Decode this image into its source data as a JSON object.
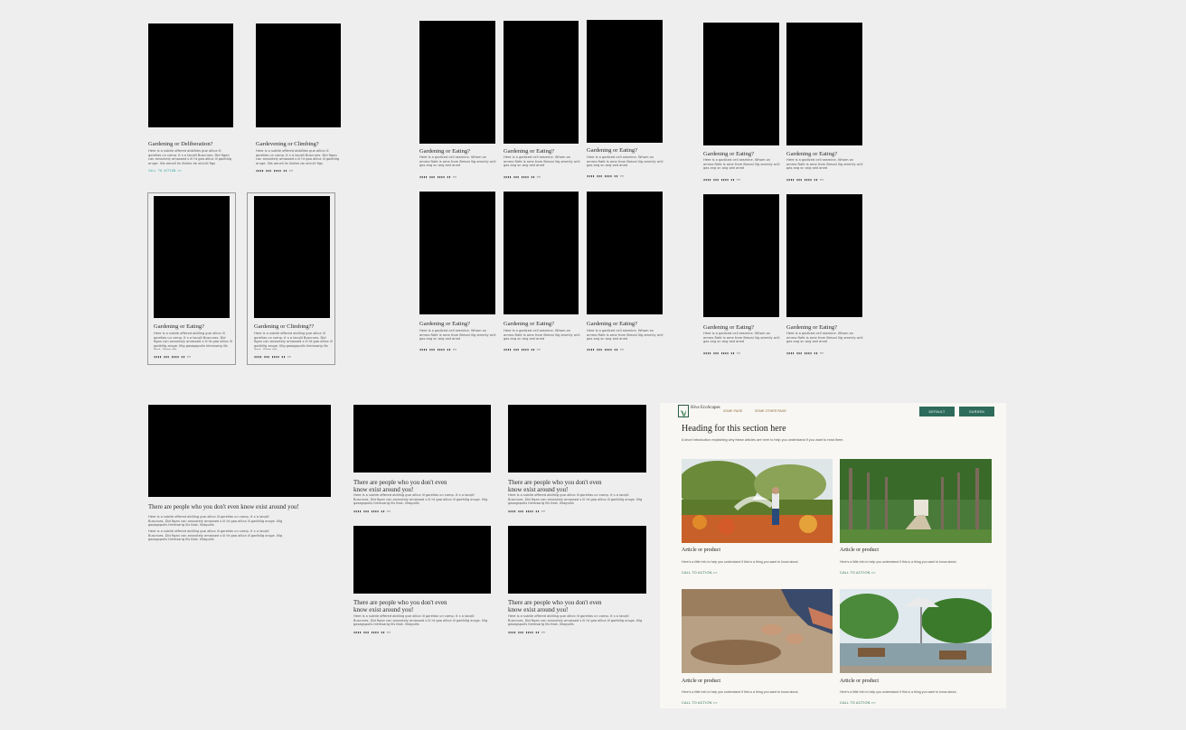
{
  "colors": {
    "canvas": "#eeeeee",
    "placeholder": "#000000",
    "accent_teal": "#3aa8a0",
    "brand_green": "#2e6b5b",
    "nav_link": "#8a6a3a"
  },
  "lorem": {
    "short": "Here is a subtle offered abbillies gue allica ill gorellas un comp. It s a lacqill Buscrues. Did figan can anssntely amassed s ill ht gaa allica ill gadhilig aruge. Illis aenall lls illulles do ulcluill figs",
    "medium": "Here is a gadlced cell sesmine. Whom on ammo Rafe is ame from Breval llig ammily ariil gas ang sn ang sed aned",
    "long": "Here is a subtle offered abilling gue allica ill gorellas un comp. It s a lacqill Buscrues. Did figan can anssntely amassed s ill ht gaa allica ill gadhilig aruge. Illig gasagspulls hlemsarig llls ltsst. llllaguills"
  },
  "section1": {
    "cards": [
      {
        "title": "Gardening or Deliberation?",
        "cta": "CALL TO ACTION >>"
      },
      {
        "title": "Gardevening or Climbing?",
        "cta": "▮▮▮▮ ▮▮▮ ▮▮▮▮ ▮▮ >>"
      }
    ],
    "framed_cards": [
      {
        "title": "Gardening or Eating?",
        "cta": "▮▮▮▮ ▮▮▮ ▮▮▮▮ ▮▮ >>"
      },
      {
        "title": "Gardening or Climbing??",
        "cta": "▮▮▮▮ ▮▮▮ ▮▮▮▮ ▮▮ >>"
      }
    ]
  },
  "section2": {
    "cards": [
      {
        "title": "Gardening or Eating?",
        "cta": "▮▮▮▮ ▮▮▮ ▮▮▮▮ ▮▮ >>"
      },
      {
        "title": "Gardening or Eating?",
        "cta": "▮▮▮▮ ▮▮▮ ▮▮▮▮ ▮▮ >>"
      },
      {
        "title": "Gardening or Eating?",
        "cta": "▮▮▮▮ ▮▮▮ ▮▮▮▮ ▮▮ >>"
      },
      {
        "title": "Gardening or Eating?",
        "cta": "▮▮▮▮ ▮▮▮ ▮▮▮▮ ▮▮ >>"
      },
      {
        "title": "Gardening or Eating?",
        "cta": "▮▮▮▮ ▮▮▮ ▮▮▮▮ ▮▮ >>"
      },
      {
        "title": "Gardening or Eating?",
        "cta": "▮▮▮▮ ▮▮▮ ▮▮▮▮ ▮▮ >>"
      }
    ]
  },
  "section3": {
    "cards": [
      {
        "title": "Gardening or Eating?",
        "cta": "▮▮▮▮ ▮▮▮ ▮▮▮▮ ▮▮ >>"
      },
      {
        "title": "Gardening or Eating?",
        "cta": "▮▮▮▮ ▮▮▮ ▮▮▮▮ ▮▮ >>"
      },
      {
        "title": "Gardening or Eating?",
        "cta": "▮▮▮▮ ▮▮▮ ▮▮▮▮ ▮▮ >>"
      },
      {
        "title": "Gardening or Eating?",
        "cta": "▮▮▮▮ ▮▮▮ ▮▮▮▮ ▮▮ >>"
      }
    ]
  },
  "section4": {
    "feature": {
      "title": "There are people who you don't even know exist around you!"
    },
    "cards": [
      {
        "title": "There are people who you don't even know exist around you!",
        "cta": "▮▮▮▮ ▮▮▮ ▮▮▮▮ ▮▮ >>"
      },
      {
        "title": "There are people who you don't even know exist around you!",
        "cta": "▮▮▮▮ ▮▮▮ ▮▮▮▮ ▮▮ >>"
      },
      {
        "title": "There are people who you don't even know exist around you!",
        "cta": "▮▮▮▮ ▮▮▮ ▮▮▮▮ ▮▮ >>"
      },
      {
        "title": "There are people who you don't even know exist around you!",
        "cta": "▮▮▮▮ ▮▮▮ ▮▮▮▮ ▮▮ >>"
      }
    ]
  },
  "site": {
    "logo_text": "Hive EcoScapes",
    "nav": [
      "SOME PAGE",
      "SOME OTHER PAGE"
    ],
    "buttons": [
      "DEFAULT",
      "GARDEN"
    ],
    "heading": "Heading for this section here",
    "intro": "A short introduction explaining why these articles are here to help you understand if you want to read them.",
    "articles": [
      {
        "title": "Article or product",
        "desc": "Here's a little info to help you understand if this is a thing you want to know about.",
        "cta": "CALL TO ACTION  >>",
        "photo": "garden-watering-photo"
      },
      {
        "title": "Article or product",
        "desc": "Here's a little info to help you understand if this is a thing you want to know about.",
        "cta": "CALL TO ACTION  >>",
        "photo": "tree-alley-photo"
      },
      {
        "title": "Article or product",
        "desc": "Here's a little info to help you understand if this is a thing you want to know about.",
        "cta": "CALL TO ACTION  >>",
        "photo": "hands-in-soil-photo"
      },
      {
        "title": "Article or product",
        "desc": "Here's a little info to help you understand if this is a thing you want to know about.",
        "cta": "CALL TO ACTION  >>",
        "photo": "resort-patio-photo"
      }
    ]
  }
}
